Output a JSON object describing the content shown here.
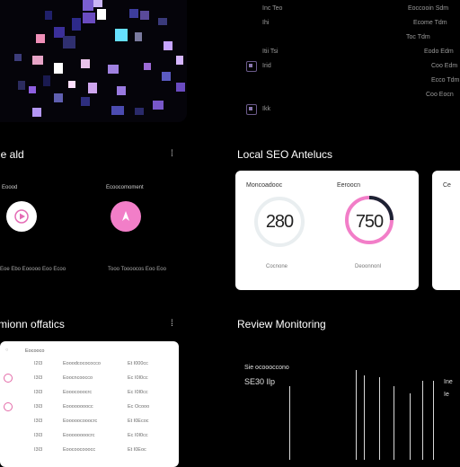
{
  "colors": {
    "accent_pink": "#f27ec8",
    "gauge_track": "#e9eef0",
    "gauge_dark": "#1d2233"
  },
  "top_list": {
    "left": [
      "Inc Teo",
      "Ihi",
      "Itii Tsi",
      "Irid",
      "Ikk"
    ],
    "right": [
      "Eoccooin Sdm",
      "Ecome Tdm",
      "Toc Tdm",
      "Eodo Edm",
      "Coo Edm",
      "Ecco Tdm",
      "Coo Eocn"
    ]
  },
  "left_section": {
    "title": "le ald",
    "icon": "⁞",
    "items": [
      {
        "label": "Eoood",
        "icon": "play-icon",
        "sub": "Eoe Ebo Eooooo\n Eoo Ecoo"
      },
      {
        "label": "Ecoocomoment",
        "icon": "compass-icon",
        "sub": "Tooo Toooocos\n Eoo Eoo"
      }
    ]
  },
  "seo": {
    "title": "Local SEO Antelucs",
    "cards": [
      {
        "label": "Moncoadooc",
        "value": "280",
        "sub": "Cocnone"
      },
      {
        "label": "Eeroocn",
        "value": "750",
        "sub": "Deoonnonl"
      },
      {
        "label": "Ce",
        "value": "",
        "sub": ""
      }
    ]
  },
  "notifications": {
    "title": "mionn offatics",
    "icon": "⁞",
    "header": "Eocooco",
    "rows": [
      {
        "a": "I2I3",
        "b": "Eooodcocococco",
        "c": "Et I000cc"
      },
      {
        "a": "I3I3",
        "b": "Eoocncoocco",
        "c": "Ec I0I0cc"
      },
      {
        "a": "I3I3",
        "b": "Eooocooocrc",
        "c": "Ec I0I0cc"
      },
      {
        "a": "I3I3",
        "b": "Eoooooooocc",
        "c": "Ec Ocooo"
      },
      {
        "a": "I3I3",
        "b": "Eooooocooocrc",
        "c": "Et I0Ecoc"
      },
      {
        "a": "I3I3",
        "b": "Eoooooooocrc",
        "c": "Ec I0I0cc"
      },
      {
        "a": "I3I3",
        "b": "Eoocoocooocc",
        "c": "Et I0Eoc"
      }
    ]
  },
  "review": {
    "title": "Review Monitoring",
    "line1": "Sie ocoooccono",
    "line2": "SE30 Ilp",
    "side1": "Ine",
    "side2": "Ie"
  }
}
